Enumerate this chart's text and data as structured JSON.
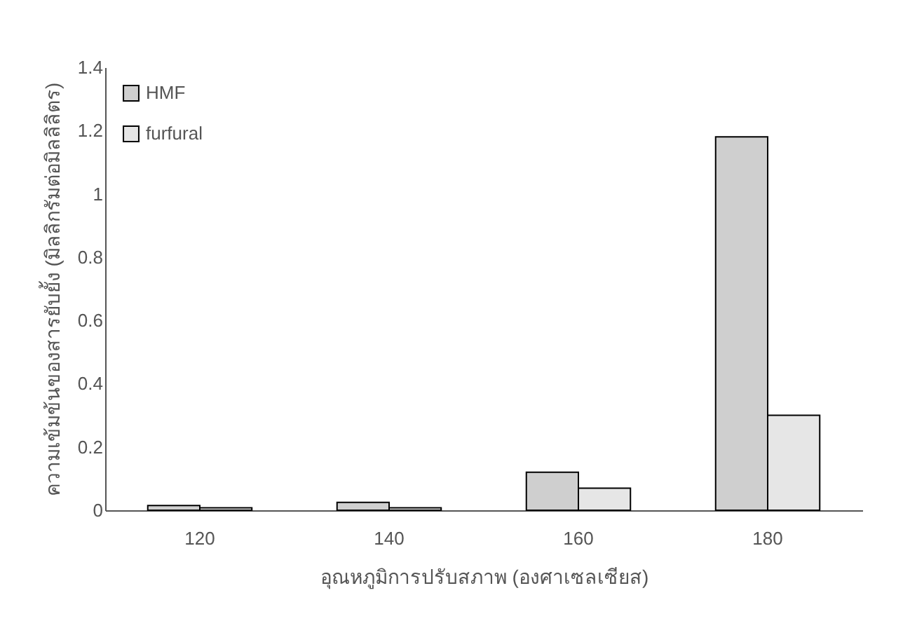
{
  "chart_data": {
    "type": "bar",
    "xlabel": "อุณหภูมิการปรับสภาพ (องศาเซลเซียส)",
    "ylabel": "ความเข้มข้นของสารยับยั้ง (มิลลิกรัมต่อมิลลิลิตร)",
    "categories": [
      "120",
      "140",
      "160",
      "180"
    ],
    "series": [
      {
        "name": "HMF",
        "color": "#cfcfcf",
        "values": [
          0.015,
          0.025,
          0.12,
          1.18
        ]
      },
      {
        "name": "furfural",
        "color": "#e6e6e6",
        "values": [
          0.008,
          0.008,
          0.07,
          0.3
        ]
      }
    ],
    "ylim": [
      0,
      1.4
    ],
    "yticks": [
      0,
      0.2,
      0.4,
      0.6,
      0.8,
      1,
      1.2,
      1.4
    ],
    "legend": "top left",
    "grid": false
  }
}
